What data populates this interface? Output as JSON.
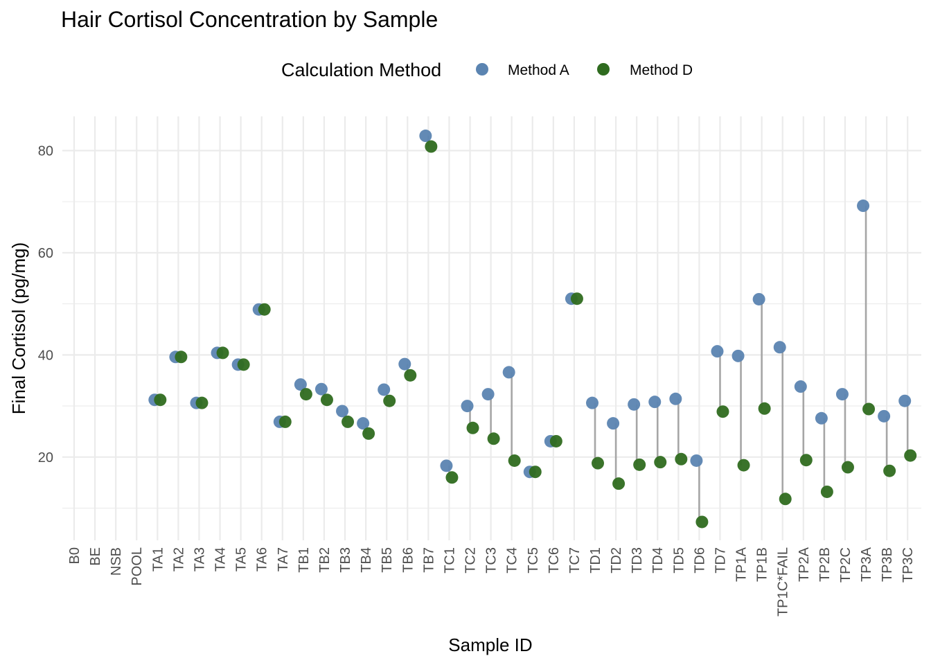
{
  "chart_data": {
    "type": "scatter",
    "title": "Hair Cortisol Concentration by Sample",
    "xlabel": "Sample ID",
    "ylabel": "Final Cortisol (pg/mg)",
    "legend": {
      "title": "Calculation Method",
      "placement": "top"
    },
    "grid": true,
    "ylim": [
      3.7,
      86.7
    ],
    "y_ticks": [
      20,
      40,
      60,
      80
    ],
    "colors": {
      "Method A": "#5b84b1",
      "Method D": "#2f6b1f"
    },
    "categories": [
      "B0",
      "BE",
      "NSB",
      "POOL",
      "TA1",
      "TA2",
      "TA3",
      "TA4",
      "TA5",
      "TA6",
      "TA7",
      "TB1",
      "TB2",
      "TB3",
      "TB4",
      "TB5",
      "TB6",
      "TB7",
      "TC1",
      "TC2",
      "TC3",
      "TC4",
      "TC5",
      "TC6",
      "TC7",
      "TD1",
      "TD2",
      "TD3",
      "TD4",
      "TD5",
      "TD6",
      "TD7",
      "TP1A",
      "TP1B",
      "TP1C*FAIL",
      "TP2A",
      "TP2B",
      "TP2C",
      "TP3A",
      "TP3B",
      "TP3C"
    ],
    "series": [
      {
        "name": "Method A",
        "values": [
          null,
          null,
          null,
          null,
          31.2,
          39.6,
          30.6,
          40.4,
          38.1,
          48.9,
          26.9,
          34.2,
          33.3,
          29.0,
          26.6,
          33.2,
          38.2,
          82.9,
          18.3,
          30.0,
          32.3,
          36.6,
          17.1,
          23.1,
          51.0,
          30.6,
          26.6,
          30.3,
          30.8,
          31.4,
          19.3,
          40.7,
          39.8,
          50.9,
          41.5,
          33.8,
          27.6,
          32.3,
          69.2,
          28.0,
          31.0
        ]
      },
      {
        "name": "Method D",
        "values": [
          null,
          null,
          null,
          null,
          31.2,
          39.6,
          30.6,
          40.4,
          38.1,
          48.9,
          26.9,
          32.3,
          31.2,
          26.9,
          24.6,
          31.0,
          36.0,
          80.8,
          16.0,
          25.7,
          23.6,
          19.3,
          17.1,
          23.1,
          51.0,
          18.8,
          14.8,
          18.5,
          19.0,
          19.6,
          7.3,
          28.9,
          18.4,
          29.5,
          11.8,
          19.4,
          13.2,
          18.0,
          29.4,
          17.3,
          20.3
        ]
      }
    ]
  }
}
